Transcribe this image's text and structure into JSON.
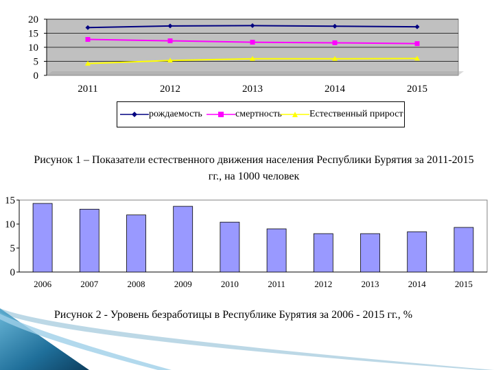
{
  "chart_data": [
    {
      "type": "line",
      "title": "",
      "xlabel": "",
      "ylabel": "",
      "categories": [
        "2011",
        "2012",
        "2013",
        "2014",
        "2015"
      ],
      "ylim": [
        0,
        20
      ],
      "yticks": [
        "0",
        "5",
        "10",
        "15",
        "20"
      ],
      "grid": true,
      "legend": "bottom",
      "series": [
        {
          "name": "рождаемость",
          "values": [
            17.0,
            17.6,
            17.7,
            17.5,
            17.3
          ],
          "color": "#000080",
          "marker": "diamond"
        },
        {
          "name": "смертность",
          "values": [
            12.8,
            12.3,
            11.8,
            11.6,
            11.3
          ],
          "color": "#ff00ff",
          "marker": "square"
        },
        {
          "name": "Естественный прирост",
          "values": [
            4.2,
            5.3,
            5.9,
            5.9,
            6.0
          ],
          "color": "#ffff00",
          "marker": "triangle"
        }
      ],
      "plot_background": "#c0c0c0"
    },
    {
      "type": "bar",
      "title": "",
      "xlabel": "",
      "ylabel": "",
      "categories": [
        "2006",
        "2007",
        "2008",
        "2009",
        "2010",
        "2011",
        "2012",
        "2013",
        "2014",
        "2015"
      ],
      "values": [
        14.3,
        13.1,
        11.9,
        13.7,
        10.4,
        9.0,
        8.0,
        8.0,
        8.4,
        9.3
      ],
      "ylim": [
        0,
        15
      ],
      "yticks": [
        "0",
        "5",
        "10",
        "15"
      ],
      "grid": false,
      "bar_color": "#9999ff"
    }
  ],
  "captions": {
    "fig1": "Рисунок 1 – Показатели естественного движения населения Республики Бурятия за 2011-2015 гг., на 1000 человек",
    "fig2": "Рисунок 2 - Уровень безработицы в Республике Бурятия за 2006 - 2015 гг., %"
  }
}
